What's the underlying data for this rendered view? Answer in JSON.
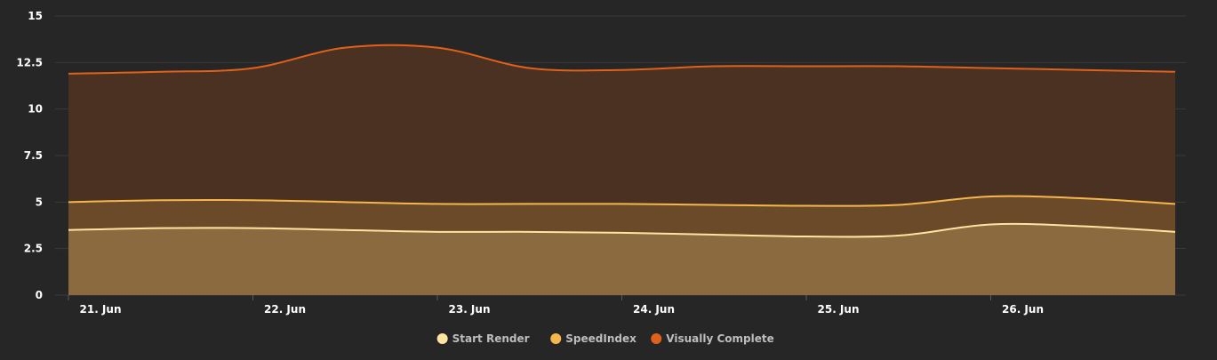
{
  "chart_data": {
    "type": "area",
    "title": "",
    "xlabel": "",
    "ylabel": "",
    "x": [
      "2024-06-21",
      "2024-06-22",
      "2024-06-23",
      "2024-06-24",
      "2024-06-25",
      "2024-06-26",
      "2024-06-27"
    ],
    "x_ticks": [
      "21. Jun",
      "22. Jun",
      "23. Jun",
      "24. Jun",
      "25. Jun",
      "26. Jun"
    ],
    "y_ticks": [
      "0",
      "2.5",
      "5",
      "7.5",
      "10",
      "12.5",
      "15"
    ],
    "ylim": [
      0,
      15
    ],
    "grid": true,
    "legend_position": "bottom-center",
    "series": [
      {
        "name": "Start Render",
        "color": "#ffe3a1",
        "fill": "#8a6a3e",
        "x": [
          0,
          0.5,
          1,
          1.5,
          2,
          2.5,
          3,
          3.5,
          4,
          4.5,
          5,
          5.5,
          6
        ],
        "values": [
          3.5,
          3.6,
          3.6,
          3.5,
          3.4,
          3.4,
          3.35,
          3.25,
          3.15,
          3.2,
          3.8,
          3.7,
          3.4
        ]
      },
      {
        "name": "SpeedIndex",
        "color": "#f5b74c",
        "fill": "#6a4a28",
        "x": [
          0,
          0.5,
          1,
          1.5,
          2,
          2.5,
          3,
          3.5,
          4,
          4.5,
          5,
          5.5,
          6
        ],
        "values": [
          5.0,
          5.1,
          5.1,
          5.0,
          4.9,
          4.9,
          4.9,
          4.85,
          4.8,
          4.85,
          5.3,
          5.2,
          4.9
        ]
      },
      {
        "name": "Visually Complete",
        "color": "#e0611a",
        "fill": "#4a3122",
        "x": [
          0,
          0.5,
          1,
          1.5,
          2,
          2.5,
          3,
          3.5,
          4,
          4.5,
          5,
          5.5,
          6
        ],
        "values": [
          11.9,
          12.0,
          12.2,
          13.3,
          13.3,
          12.2,
          12.1,
          12.3,
          12.3,
          12.3,
          12.2,
          12.1,
          12.0
        ]
      }
    ]
  }
}
